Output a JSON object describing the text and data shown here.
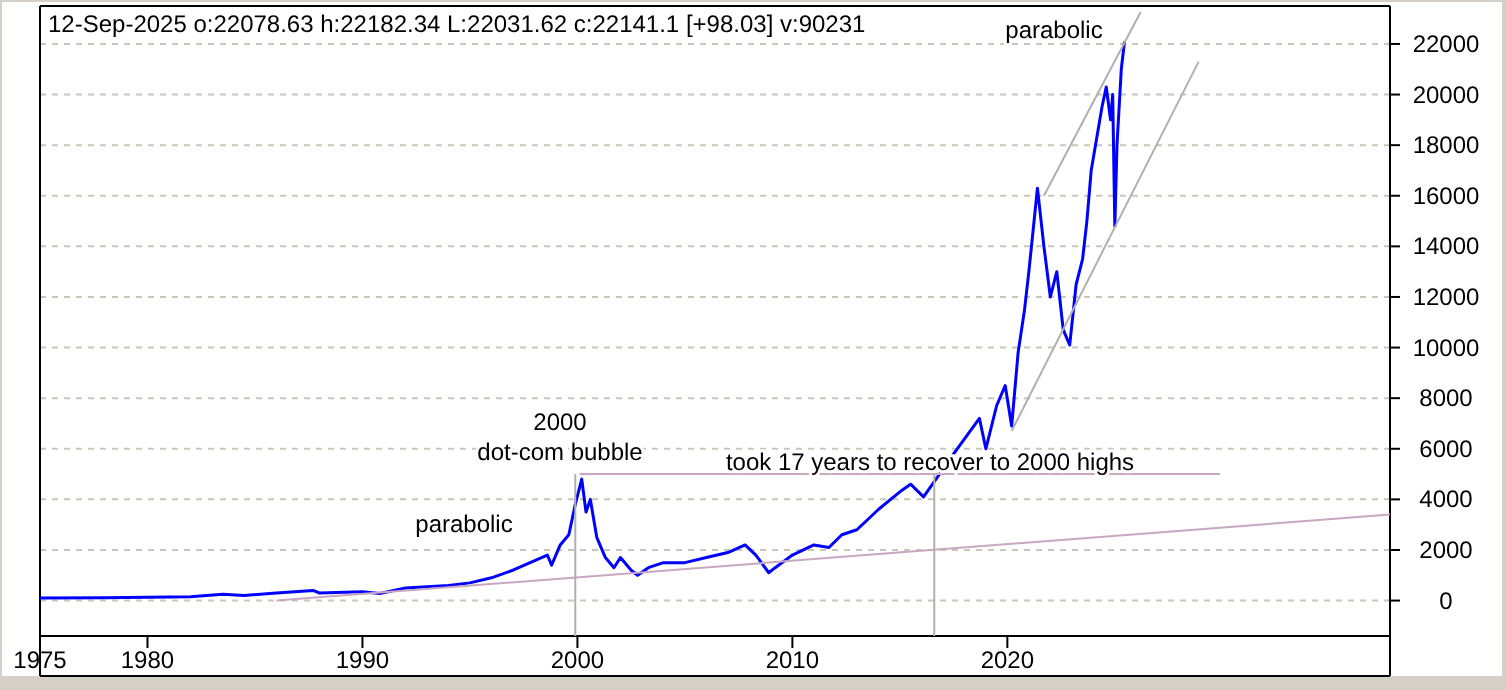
{
  "chart_data": {
    "type": "line",
    "title": "12-Sep-2025  o:22078.63 h:22182.34 L:22031.62 c:22141.1 [+98.03] v:90231",
    "xlim": [
      1975,
      2037.8
    ],
    "ylim": [
      -1400,
      23500
    ],
    "xticks": [
      {
        "value": 1975,
        "label": "1975"
      },
      {
        "value": 1980,
        "label": "1980"
      },
      {
        "value": 1990,
        "label": "1990"
      },
      {
        "value": 2000,
        "label": "2000"
      },
      {
        "value": 2010,
        "label": "2010"
      },
      {
        "value": 2020,
        "label": "2020"
      }
    ],
    "yticks": [
      0,
      2000,
      4000,
      6000,
      8000,
      10000,
      12000,
      14000,
      16000,
      18000,
      20000,
      22000
    ],
    "grid": "y",
    "series": [
      {
        "color": "#0000ff",
        "x": [
          1975,
          1978,
          1980,
          1982,
          1983.5,
          1984.5,
          1986,
          1987.7,
          1988,
          1990,
          1990.8,
          1992,
          1994,
          1995,
          1996,
          1997,
          1997.8,
          1998.6,
          1998.8,
          1999.2,
          1999.6,
          1999.9,
          2000.2,
          2000.4,
          2000.6,
          2000.9,
          2001.3,
          2001.7,
          2002.0,
          2002.5,
          2002.8,
          2003.3,
          2004,
          2005,
          2006,
          2007,
          2007.8,
          2008.3,
          2008.9,
          2009.2,
          2010,
          2011,
          2011.7,
          2012.3,
          2013,
          2014,
          2015,
          2015.5,
          2016.1,
          2016.6,
          2017.5,
          2018.7,
          2019.0,
          2019.5,
          2019.9,
          2020.2,
          2020.5,
          2020.8,
          2021.0,
          2021.4,
          2021.7,
          2022.0,
          2022.3,
          2022.6,
          2022.9,
          2023.2,
          2023.5,
          2023.7,
          2023.9,
          2024.2,
          2024.4,
          2024.6,
          2024.8,
          2024.9,
          2025.0,
          2025.1,
          2025.3,
          2025.45
        ],
        "values": [
          100,
          110,
          130,
          150,
          250,
          200,
          300,
          400,
          300,
          350,
          280,
          500,
          600,
          700,
          900,
          1200,
          1500,
          1800,
          1400,
          2200,
          2600,
          3800,
          4800,
          3500,
          4000,
          2500,
          1700,
          1300,
          1700,
          1200,
          1000,
          1300,
          1500,
          1500,
          1700,
          1900,
          2200,
          1800,
          1100,
          1300,
          1800,
          2200,
          2100,
          2600,
          2800,
          3600,
          4300,
          4600,
          4100,
          4700,
          5800,
          7200,
          6000,
          7700,
          8500,
          6900,
          9800,
          11500,
          13000,
          16300,
          14000,
          12000,
          13000,
          10700,
          10100,
          12500,
          13500,
          15000,
          17000,
          18500,
          19500,
          20300,
          19000,
          20000,
          14800,
          18000,
          21000,
          22100
        ]
      },
      {
        "color": "#c8a8c0",
        "x": [
          1986,
          2037.8
        ],
        "values": [
          0,
          3400
        ]
      },
      {
        "color": "#c8a8c0",
        "x": [
          2000.1,
          2029.9
        ],
        "values": [
          5000,
          5000
        ]
      },
      {
        "color": "#b0b0b0",
        "x": [
          1999.9,
          1999.9
        ],
        "values": [
          5000,
          -1400
        ]
      },
      {
        "color": "#b0b0b0",
        "x": [
          2016.6,
          2016.6
        ],
        "values": [
          5000,
          -1400
        ]
      },
      {
        "color": "#b0b0b0",
        "x": [
          2021.7,
          2026.2
        ],
        "values": [
          16000,
          23260
        ]
      },
      {
        "color": "#b0b0b0",
        "x": [
          2020.2,
          2028.9
        ],
        "values": [
          6700,
          21300
        ]
      }
    ],
    "annotations": [
      "parabolic",
      "2000",
      "dot-com bubble",
      "took 17 years to recover to 2000 highs",
      "parabolic"
    ]
  }
}
